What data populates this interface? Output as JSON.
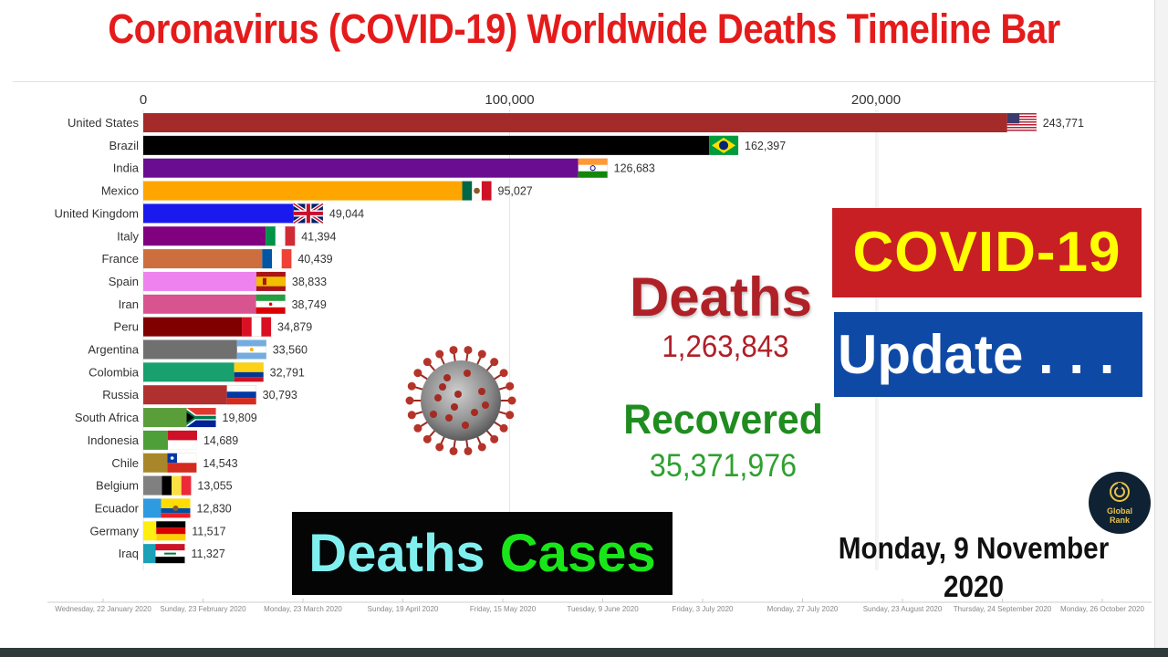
{
  "title": "Coronavirus (COVID-19) Worldwide Deaths Timeline Bar",
  "colors": {
    "title": "#e51b1b",
    "deaths": "#b02027",
    "recovered": "#1f8c1f",
    "covid_badge_bg": "#c71f24",
    "covid_badge_text": "#ffff00",
    "update_badge_bg": "#0e49a6",
    "deaths_word": "#7ff0ef",
    "cases_word": "#19e619"
  },
  "chart_data": {
    "type": "bar",
    "orientation": "horizontal",
    "title": "Coronavirus (COVID-19) Worldwide Deaths Timeline Bar",
    "xlim": [
      0,
      243771
    ],
    "x_ticks": [
      0,
      100000,
      200000
    ],
    "x_tick_labels": [
      "0",
      "100,000",
      "200,000"
    ],
    "grid": true,
    "categories": [
      "United States",
      "Brazil",
      "India",
      "Mexico",
      "United Kingdom",
      "Italy",
      "France",
      "Spain",
      "Iran",
      "Peru",
      "Argentina",
      "Colombia",
      "Russia",
      "South Africa",
      "Indonesia",
      "Chile",
      "Belgium",
      "Ecuador",
      "Germany",
      "Iraq"
    ],
    "values": [
      243771,
      162397,
      126683,
      95027,
      49044,
      41394,
      40439,
      38833,
      38749,
      34879,
      33560,
      32791,
      30793,
      19809,
      14689,
      14543,
      13055,
      12830,
      11517,
      11327
    ],
    "value_labels": [
      "243,771",
      "162,397",
      "126,683",
      "95,027",
      "49,044",
      "41,394",
      "40,439",
      "38,833",
      "38,749",
      "34,879",
      "33,560",
      "32,791",
      "30,793",
      "19,809",
      "14,689",
      "14,543",
      "13,055",
      "12,830",
      "11,517",
      "11,327"
    ],
    "bar_colors": [
      "#a52a2a",
      "#000000",
      "#6a0d91",
      "#ffa500",
      "#1a1aee",
      "#800080",
      "#cd6e3f",
      "#ee82ee",
      "#d8548f",
      "#800000",
      "#707070",
      "#18a06e",
      "#b03030",
      "#5a9e3a",
      "#4e9e3a",
      "#a8872a",
      "#808080",
      "#2e9ae0",
      "#ffee10",
      "#1aa0b8"
    ],
    "flags": [
      "flag-usa-icon",
      "flag-brazil-icon",
      "flag-india-icon",
      "flag-mexico-icon",
      "flag-uk-icon",
      "flag-italy-icon",
      "flag-france-icon",
      "flag-spain-icon",
      "flag-iran-icon",
      "flag-peru-icon",
      "flag-argentina-icon",
      "flag-colombia-icon",
      "flag-russia-icon",
      "flag-south-africa-icon",
      "flag-indonesia-icon",
      "flag-chile-icon",
      "flag-belgium-icon",
      "flag-ecuador-icon",
      "flag-germany-icon",
      "flag-iraq-icon"
    ],
    "timeline_labels": [
      "Wednesday, 22 January 2020",
      "Sunday, 23 February 2020",
      "Monday, 23 March 2020",
      "Sunday, 19 April 2020",
      "Friday, 15 May 2020",
      "Tuesday, 9 June 2020",
      "Friday, 3 July 2020",
      "Monday, 27 July 2020",
      "Sunday, 23 August 2020",
      "Thursday, 24 September 2020",
      "Monday, 26 October 2020"
    ]
  },
  "totals": {
    "deaths_label": "Deaths",
    "deaths_value": "1,263,843",
    "recovered_label": "Recovered",
    "recovered_value": "35,371,976"
  },
  "badges": {
    "covid": "COVID-19",
    "update": "Update . . ."
  },
  "banner": {
    "word1": "Deaths",
    "word2": "Cases"
  },
  "current_date": "Monday, 9 November 2020",
  "logo": {
    "line1": "Global",
    "line2": "Rank"
  },
  "icons": {
    "virus": "coronavirus-icon",
    "logo": "global-rank-logo-icon"
  }
}
